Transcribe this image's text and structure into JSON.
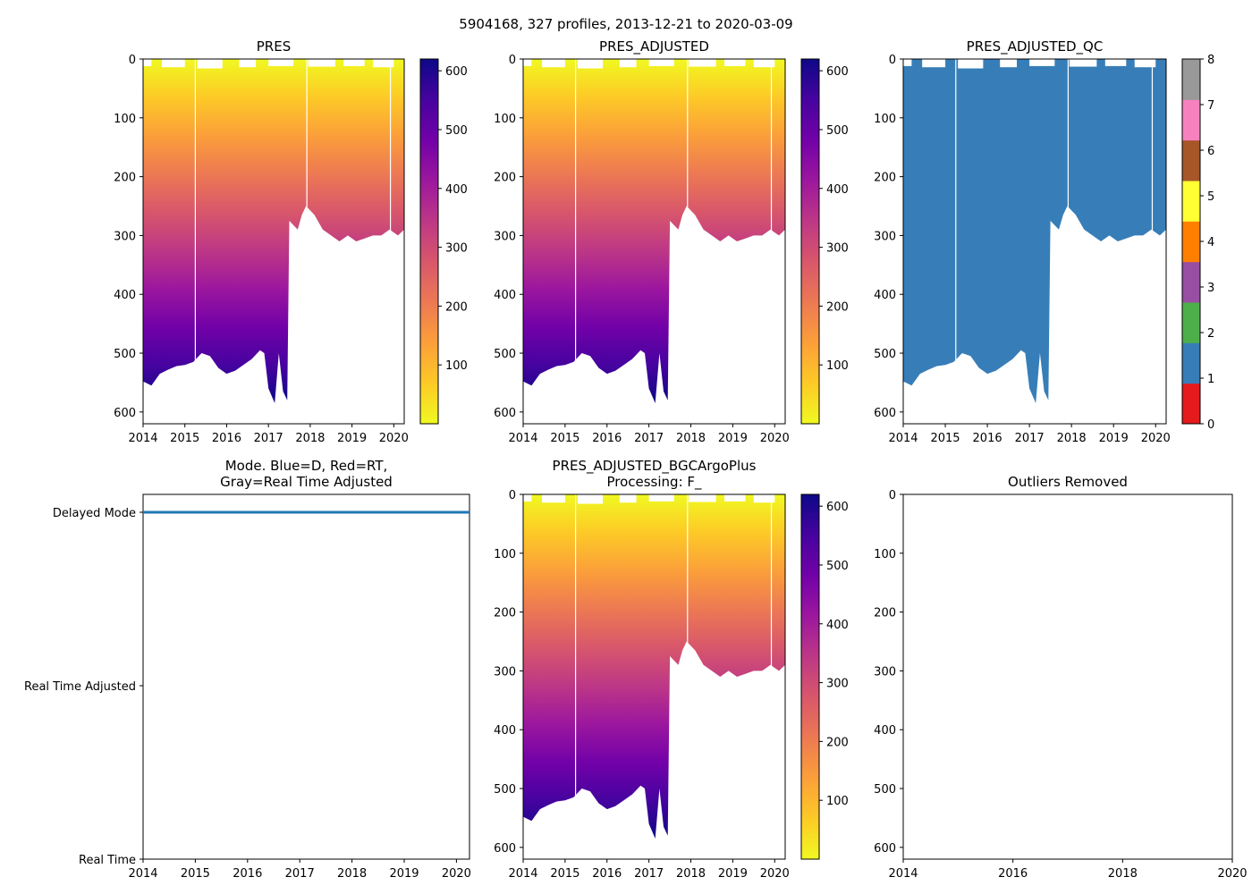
{
  "figure_title": "5904168, 327 profiles, 2013-12-21 to 2020-03-09",
  "colors": {
    "plasma": [
      "#0d0887",
      "#46039f",
      "#7201a8",
      "#9c179e",
      "#bd3786",
      "#d8576b",
      "#ed7953",
      "#fb9f3a",
      "#fdca26",
      "#f0f921"
    ],
    "qc_blue": "#377eb8",
    "mode_line": "#1f77b4",
    "qc_scale": [
      "#e41a1c",
      "#377eb8",
      "#4daf4a",
      "#984ea3",
      "#ff7f00",
      "#ffff33",
      "#a65628",
      "#f781bf",
      "#999999"
    ]
  },
  "chart_data": [
    {
      "id": "pres",
      "type": "heatmap",
      "title": "PRES",
      "xlim": [
        2014.0,
        2020.25
      ],
      "ylim": [
        620,
        0
      ],
      "x_ticks": [
        "2014",
        "2015",
        "2016",
        "2017",
        "2018",
        "2019",
        "2020"
      ],
      "y_ticks": [
        "0",
        "100",
        "200",
        "300",
        "400",
        "500",
        "600"
      ],
      "colorbar": {
        "range": [
          0,
          620
        ],
        "ticks": [
          "100",
          "200",
          "300",
          "400",
          "500",
          "600"
        ]
      },
      "gaps": [
        2015.25,
        2017.92,
        2019.92
      ],
      "profile_depth": [
        [
          2014.0,
          548
        ],
        [
          2014.2,
          555
        ],
        [
          2014.4,
          535
        ],
        [
          2014.6,
          528
        ],
        [
          2014.8,
          522
        ],
        [
          2015.0,
          520
        ],
        [
          2015.2,
          515
        ],
        [
          2015.4,
          500
        ],
        [
          2015.6,
          505
        ],
        [
          2015.8,
          525
        ],
        [
          2016.0,
          535
        ],
        [
          2016.2,
          530
        ],
        [
          2016.4,
          520
        ],
        [
          2016.6,
          510
        ],
        [
          2016.8,
          495
        ],
        [
          2016.9,
          500
        ],
        [
          2017.0,
          560
        ],
        [
          2017.15,
          585
        ],
        [
          2017.25,
          500
        ],
        [
          2017.35,
          565
        ],
        [
          2017.45,
          580
        ],
        [
          2017.5,
          275
        ],
        [
          2017.7,
          290
        ],
        [
          2017.8,
          265
        ],
        [
          2017.9,
          250
        ],
        [
          2018.1,
          265
        ],
        [
          2018.3,
          290
        ],
        [
          2018.5,
          300
        ],
        [
          2018.7,
          310
        ],
        [
          2018.9,
          300
        ],
        [
          2019.1,
          310
        ],
        [
          2019.3,
          305
        ],
        [
          2019.5,
          300
        ],
        [
          2019.7,
          300
        ],
        [
          2019.9,
          290
        ],
        [
          2020.1,
          300
        ],
        [
          2020.25,
          290
        ]
      ]
    },
    {
      "id": "pres_adjusted",
      "type": "heatmap",
      "title": "PRES_ADJUSTED",
      "xlim": [
        2014.0,
        2020.25
      ],
      "ylim": [
        620,
        0
      ],
      "x_ticks": [
        "2014",
        "2015",
        "2016",
        "2017",
        "2018",
        "2019",
        "2020"
      ],
      "y_ticks": [
        "0",
        "100",
        "200",
        "300",
        "400",
        "500",
        "600"
      ],
      "colorbar": {
        "range": [
          0,
          620
        ],
        "ticks": [
          "100",
          "200",
          "300",
          "400",
          "500",
          "600"
        ]
      },
      "gaps": [
        2015.25,
        2017.92,
        2019.92
      ]
    },
    {
      "id": "pres_adjusted_qc",
      "type": "heatmap",
      "title": "PRES_ADJUSTED_QC",
      "xlim": [
        2014.0,
        2020.25
      ],
      "ylim": [
        620,
        0
      ],
      "x_ticks": [
        "2014",
        "2015",
        "2016",
        "2017",
        "2018",
        "2019",
        "2020"
      ],
      "y_ticks": [
        "0",
        "100",
        "200",
        "300",
        "400",
        "500",
        "600"
      ],
      "qc_value": 1,
      "colorbar": {
        "range": [
          0,
          8
        ],
        "ticks": [
          "0",
          "1",
          "2",
          "3",
          "4",
          "5",
          "6",
          "7",
          "8"
        ]
      },
      "gaps": [
        2015.25,
        2017.92,
        2019.92
      ]
    },
    {
      "id": "mode",
      "type": "line",
      "title_lines": [
        "Mode. Blue=D, Red=RT,",
        "Gray=Real Time Adjusted"
      ],
      "xlim": [
        2014.0,
        2020.25
      ],
      "x_ticks": [
        "2014",
        "2015",
        "2016",
        "2017",
        "2018",
        "2019",
        "2020"
      ],
      "y_categories": [
        "Real Time",
        "Real Time Adjusted",
        "Delayed Mode"
      ],
      "series": [
        {
          "name": "Delayed Mode",
          "x": [
            2014.0,
            2020.25
          ],
          "y": [
            "Delayed Mode",
            "Delayed Mode"
          ]
        }
      ]
    },
    {
      "id": "pres_bgc",
      "type": "heatmap",
      "title_lines": [
        "PRES_ADJUSTED_BGCArgoPlus",
        "Processing: F_"
      ],
      "xlim": [
        2014.0,
        2020.25
      ],
      "ylim": [
        620,
        0
      ],
      "x_ticks": [
        "2014",
        "2015",
        "2016",
        "2017",
        "2018",
        "2019",
        "2020"
      ],
      "y_ticks": [
        "0",
        "100",
        "200",
        "300",
        "400",
        "500",
        "600"
      ],
      "colorbar": {
        "range": [
          0,
          620
        ],
        "ticks": [
          "100",
          "200",
          "300",
          "400",
          "500",
          "600"
        ]
      },
      "gaps": [
        2015.25,
        2017.92,
        2019.92
      ]
    },
    {
      "id": "outliers",
      "type": "scatter",
      "title": "Outliers Removed",
      "xlim": [
        2014.0,
        2020.0
      ],
      "ylim": [
        620,
        0
      ],
      "x_ticks": [
        "2014",
        "2016",
        "2018",
        "2020"
      ],
      "y_ticks": [
        "0",
        "100",
        "200",
        "300",
        "400",
        "500",
        "600"
      ],
      "points": []
    }
  ]
}
